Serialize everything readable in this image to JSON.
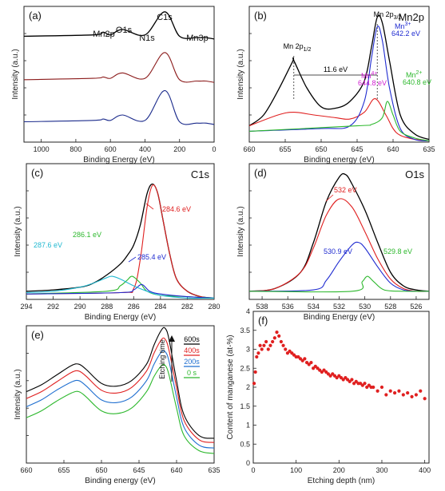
{
  "chart_data": [
    {
      "panel": "(a)",
      "type": "line",
      "xlabel": "Binding Energy (eV)",
      "ylabel": "Intensity (a.u.)",
      "xlim": [
        1100,
        0
      ],
      "x_reversed": true,
      "xticks": [
        1000,
        800,
        600,
        400,
        200,
        0
      ],
      "annotations": [
        {
          "text": "Mn2p",
          "x": 642
        },
        {
          "text": "O1s",
          "x": 530
        },
        {
          "text": "N1s",
          "x": 400
        },
        {
          "text": "C1s",
          "x": 285
        },
        {
          "text": "Mn3p",
          "x": 50
        }
      ],
      "series": [
        {
          "color": "#000000",
          "x": [
            1100,
            700,
            642,
            600,
            530,
            400,
            285,
            200,
            100,
            50,
            0
          ],
          "y": [
            0.78,
            0.79,
            0.81,
            0.79,
            0.83,
            0.79,
            0.96,
            0.78,
            0.77,
            0.77,
            0.76
          ]
        },
        {
          "color": "#8b1a1a",
          "x": [
            1100,
            700,
            642,
            600,
            530,
            400,
            285,
            200,
            100,
            50,
            0
          ],
          "y": [
            0.46,
            0.47,
            0.48,
            0.47,
            0.51,
            0.47,
            0.66,
            0.46,
            0.45,
            0.45,
            0.44
          ]
        },
        {
          "color": "#1a2a8b",
          "x": [
            1100,
            700,
            642,
            600,
            530,
            400,
            285,
            200,
            100,
            50,
            0
          ],
          "y": [
            0.15,
            0.16,
            0.17,
            0.16,
            0.2,
            0.16,
            0.38,
            0.15,
            0.14,
            0.14,
            0.13
          ]
        }
      ]
    },
    {
      "panel": "(b)",
      "type": "line",
      "title": "Mn2p",
      "xlabel": "Binding energy (eV)",
      "ylabel": "Intensity (a.u.)",
      "xlim": [
        660,
        635
      ],
      "x_reversed": true,
      "xticks": [
        660,
        655,
        650,
        645,
        640,
        635
      ],
      "annotations": [
        {
          "text": "Mn 2p",
          "sub": "1/2",
          "color": "#000000"
        },
        {
          "text": "Mn 2p",
          "sub": "3/2",
          "color": "#000000"
        },
        {
          "text": "11.6 eV",
          "color": "#000000"
        },
        {
          "text": "Mn",
          "sup": "3+",
          "value": "642.2 eV",
          "color": "#1f2bd0"
        },
        {
          "text": "Mn",
          "sup": "4+",
          "value": "644.8 eV",
          "color": "#d020d0"
        },
        {
          "text": "Mn",
          "sup": "2+",
          "value": "640.8 eV",
          "color": "#2db82d"
        }
      ],
      "series": [
        {
          "color": "#000000",
          "x": [
            660,
            658,
            656,
            654,
            653.8,
            652,
            650,
            648,
            646,
            644,
            643,
            642.2,
            641.5,
            640.5,
            639,
            637,
            635
          ],
          "y": [
            0.12,
            0.2,
            0.38,
            0.59,
            0.6,
            0.4,
            0.26,
            0.25,
            0.3,
            0.45,
            0.7,
            0.92,
            0.88,
            0.6,
            0.2,
            0.06,
            0.02
          ]
        },
        {
          "color": "#e02020",
          "x": [
            660,
            656,
            653.8,
            651,
            648,
            646,
            644,
            642.5,
            641,
            640,
            639,
            637,
            635
          ],
          "y": [
            0.12,
            0.2,
            0.22,
            0.2,
            0.18,
            0.17,
            0.22,
            0.32,
            0.2,
            0.1,
            0.05,
            0.02,
            0.01
          ]
        },
        {
          "color": "#1f2bd0",
          "x": [
            660,
            650,
            646,
            644,
            643,
            642.2,
            641.5,
            640.5,
            639,
            637,
            635
          ],
          "y": [
            0.08,
            0.1,
            0.12,
            0.3,
            0.62,
            0.85,
            0.75,
            0.4,
            0.1,
            0.02,
            0.01
          ]
        },
        {
          "color": "#2db82d",
          "x": [
            660,
            645,
            643,
            641.5,
            640.8,
            640,
            639,
            637,
            635
          ],
          "y": [
            0.08,
            0.12,
            0.13,
            0.18,
            0.3,
            0.2,
            0.08,
            0.03,
            0.01
          ]
        }
      ]
    },
    {
      "panel": "(c)",
      "type": "line",
      "title": "C1s",
      "xlabel": "Binding Energy (eV)",
      "ylabel": "Intensity (a.u.)",
      "xlim": [
        294,
        280
      ],
      "x_reversed": true,
      "xticks": [
        294,
        292,
        290,
        288,
        286,
        284,
        282,
        280
      ],
      "annotations": [
        {
          "text": "284.6 eV",
          "color": "#e02020"
        },
        {
          "text": "286.1 eV",
          "color": "#2db82d"
        },
        {
          "text": "287.6 eV",
          "color": "#20b8d0"
        },
        {
          "text": "285.4 eV",
          "color": "#1f2bd0"
        }
      ],
      "series": [
        {
          "color": "#000000",
          "x": [
            294,
            292,
            290,
            289,
            288,
            287,
            286.5,
            286,
            285.5,
            285,
            284.6,
            284.2,
            283.8,
            283.3,
            282.8,
            282,
            281,
            280
          ],
          "y": [
            0.06,
            0.07,
            0.09,
            0.12,
            0.18,
            0.26,
            0.32,
            0.4,
            0.55,
            0.78,
            0.85,
            0.78,
            0.58,
            0.33,
            0.15,
            0.06,
            0.02,
            0.01
          ]
        },
        {
          "color": "#e02020",
          "x": [
            294,
            287,
            286,
            285.5,
            285,
            284.6,
            284.2,
            283.8,
            283.3,
            282.8,
            282,
            281,
            280
          ],
          "y": [
            0.04,
            0.05,
            0.08,
            0.3,
            0.68,
            0.84,
            0.78,
            0.58,
            0.33,
            0.15,
            0.06,
            0.02,
            0.01
          ]
        },
        {
          "color": "#2db82d",
          "x": [
            294,
            288,
            287,
            286.5,
            286.1,
            285.5,
            285,
            284,
            282,
            280
          ],
          "y": [
            0.04,
            0.06,
            0.1,
            0.14,
            0.17,
            0.12,
            0.06,
            0.03,
            0.02,
            0.01
          ]
        },
        {
          "color": "#1f2bd0",
          "x": [
            294,
            287,
            286,
            285.4,
            284.8,
            284,
            282,
            280
          ],
          "y": [
            0.04,
            0.05,
            0.07,
            0.11,
            0.06,
            0.04,
            0.02,
            0.01
          ]
        },
        {
          "color": "#20b8d0",
          "x": [
            294,
            292,
            290,
            289,
            288,
            287.6,
            287,
            286,
            285,
            284,
            282,
            280
          ],
          "y": [
            0.05,
            0.06,
            0.09,
            0.12,
            0.16,
            0.17,
            0.15,
            0.1,
            0.06,
            0.03,
            0.01,
            0.01
          ]
        }
      ]
    },
    {
      "panel": "(d)",
      "type": "line",
      "title": "O1s",
      "xlabel": "Binding Energy (eV)",
      "ylabel": "Intensity (a.u.)",
      "xlim": [
        539,
        525
      ],
      "x_reversed": true,
      "xticks": [
        538,
        536,
        534,
        532,
        530,
        528,
        526
      ],
      "annotations": [
        {
          "text": "532 eV",
          "color": "#e02020"
        },
        {
          "text": "530.9 eV",
          "color": "#1f2bd0"
        },
        {
          "text": "529.8 eV",
          "color": "#2db82d"
        }
      ],
      "series": [
        {
          "color": "#000000",
          "x": [
            539,
            537,
            535,
            534,
            533,
            532,
            531.5,
            531,
            530,
            529,
            528,
            527,
            526,
            525
          ],
          "y": [
            0.06,
            0.08,
            0.2,
            0.42,
            0.72,
            0.9,
            0.92,
            0.85,
            0.66,
            0.42,
            0.2,
            0.1,
            0.07,
            0.06
          ]
        },
        {
          "color": "#e02020",
          "x": [
            539,
            537,
            535,
            534,
            533,
            532,
            531,
            530,
            529,
            528,
            527,
            526,
            525
          ],
          "y": [
            0.06,
            0.08,
            0.2,
            0.38,
            0.62,
            0.74,
            0.68,
            0.5,
            0.3,
            0.15,
            0.08,
            0.06,
            0.06
          ]
        },
        {
          "color": "#1f2bd0",
          "x": [
            539,
            534,
            533,
            532,
            531,
            530.5,
            530,
            529,
            528,
            527,
            526,
            525
          ],
          "y": [
            0.06,
            0.07,
            0.14,
            0.28,
            0.4,
            0.42,
            0.38,
            0.24,
            0.12,
            0.07,
            0.06,
            0.06
          ]
        },
        {
          "color": "#2db82d",
          "x": [
            539,
            531,
            530.2,
            529.8,
            529.3,
            528.5,
            527,
            525
          ],
          "y": [
            0.06,
            0.06,
            0.13,
            0.17,
            0.13,
            0.07,
            0.06,
            0.06
          ]
        }
      ]
    },
    {
      "panel": "(e)",
      "type": "line",
      "xlabel": "Binding energy (eV)",
      "ylabel": "Intensity (a.u.)",
      "xlim": [
        660,
        635
      ],
      "x_reversed": true,
      "xticks": [
        660,
        655,
        650,
        645,
        640,
        635
      ],
      "legend_title": "Etching time",
      "legend_position": "top-right",
      "series": [
        {
          "name": "600s",
          "color": "#000000",
          "x": [
            660,
            658,
            656,
            654,
            653,
            652,
            650,
            648,
            646,
            644,
            643,
            642,
            641.5,
            641,
            640,
            639,
            637,
            635
          ],
          "y": [
            0.52,
            0.57,
            0.64,
            0.71,
            0.72,
            0.68,
            0.58,
            0.56,
            0.6,
            0.72,
            0.86,
            0.97,
            0.98,
            0.9,
            0.6,
            0.35,
            0.2,
            0.18
          ]
        },
        {
          "name": "400s",
          "color": "#e02020",
          "x": [
            660,
            658,
            656,
            654,
            653,
            652,
            650,
            648,
            646,
            644,
            643,
            642,
            641.5,
            641,
            640,
            639,
            637,
            635
          ],
          "y": [
            0.47,
            0.52,
            0.59,
            0.66,
            0.67,
            0.63,
            0.53,
            0.51,
            0.55,
            0.67,
            0.8,
            0.9,
            0.9,
            0.82,
            0.55,
            0.31,
            0.17,
            0.15
          ]
        },
        {
          "name": "200s",
          "color": "#1f6fd0",
          "x": [
            660,
            658,
            656,
            654,
            653,
            652,
            650,
            648,
            646,
            644,
            643,
            642,
            641.5,
            641,
            640,
            639,
            637,
            635
          ],
          "y": [
            0.41,
            0.46,
            0.53,
            0.59,
            0.6,
            0.56,
            0.46,
            0.44,
            0.48,
            0.6,
            0.72,
            0.81,
            0.81,
            0.74,
            0.48,
            0.26,
            0.13,
            0.11
          ]
        },
        {
          "name": "0 s",
          "color": "#2db82d",
          "x": [
            660,
            658,
            656,
            654,
            653,
            652,
            650,
            648,
            646,
            644,
            643,
            642,
            641.5,
            641,
            640,
            639,
            637,
            635
          ],
          "y": [
            0.33,
            0.38,
            0.45,
            0.51,
            0.52,
            0.48,
            0.38,
            0.36,
            0.4,
            0.52,
            0.63,
            0.71,
            0.71,
            0.64,
            0.4,
            0.2,
            0.09,
            0.07
          ]
        }
      ]
    },
    {
      "panel": "(f)",
      "type": "scatter",
      "xlabel": "Etching depth (nm)",
      "ylabel": "Content of manganese (at-%)",
      "xlim": [
        0,
        410
      ],
      "ylim": [
        0,
        4
      ],
      "xticks": [
        0,
        100,
        200,
        300,
        400
      ],
      "yticks": [
        0,
        0.5,
        1,
        1.5,
        2,
        2.5,
        3,
        3.5,
        4
      ],
      "color": "#e02020",
      "x": [
        2,
        5,
        8,
        12,
        16,
        20,
        25,
        30,
        35,
        40,
        45,
        50,
        55,
        60,
        65,
        70,
        75,
        80,
        85,
        90,
        95,
        100,
        105,
        110,
        115,
        120,
        125,
        130,
        135,
        140,
        145,
        150,
        155,
        160,
        165,
        170,
        175,
        180,
        185,
        190,
        195,
        200,
        205,
        210,
        215,
        220,
        225,
        230,
        235,
        240,
        245,
        250,
        255,
        260,
        265,
        270,
        275,
        280,
        290,
        300,
        310,
        320,
        330,
        340,
        350,
        360,
        370,
        380,
        390,
        400
      ],
      "y": [
        2.1,
        2.4,
        2.8,
        2.9,
        3.1,
        3.0,
        3.1,
        3.2,
        3.0,
        3.1,
        3.2,
        3.3,
        3.45,
        3.35,
        3.2,
        3.1,
        3.0,
        2.9,
        2.95,
        2.9,
        2.85,
        2.8,
        2.8,
        2.75,
        2.7,
        2.75,
        2.65,
        2.6,
        2.65,
        2.5,
        2.55,
        2.5,
        2.45,
        2.4,
        2.45,
        2.4,
        2.35,
        2.3,
        2.35,
        2.3,
        2.25,
        2.3,
        2.25,
        2.2,
        2.25,
        2.2,
        2.15,
        2.2,
        2.1,
        2.15,
        2.1,
        2.1,
        2.05,
        2.1,
        2.0,
        2.05,
        2.0,
        2.0,
        1.9,
        2.0,
        1.8,
        1.9,
        1.85,
        1.9,
        1.8,
        1.85,
        1.75,
        1.8,
        1.9,
        1.7
      ]
    }
  ]
}
